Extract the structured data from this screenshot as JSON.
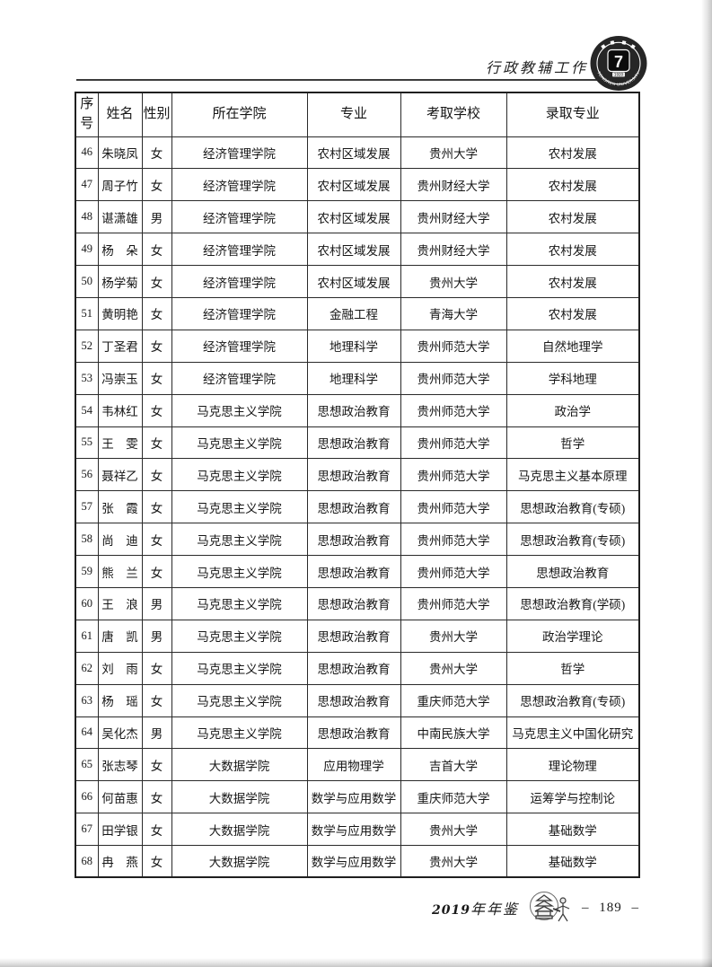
{
  "page_header": {
    "section_title": "行政教辅工作",
    "logo": {
      "glyph": "7",
      "year": "1920",
      "arc_text_bottom": "TONGREN UNIVERSITY"
    }
  },
  "table": {
    "columns": [
      "序号",
      "姓名",
      "性别",
      "所在学院",
      "专业",
      "考取学校",
      "录取专业"
    ],
    "rows": [
      [
        "46",
        "朱晓凤",
        "女",
        "经济管理学院",
        "农村区域发展",
        "贵州大学",
        "农村发展"
      ],
      [
        "47",
        "周子竹",
        "女",
        "经济管理学院",
        "农村区域发展",
        "贵州财经大学",
        "农村发展"
      ],
      [
        "48",
        "谌潇雄",
        "男",
        "经济管理学院",
        "农村区域发展",
        "贵州财经大学",
        "农村发展"
      ],
      [
        "49",
        "杨　朵",
        "女",
        "经济管理学院",
        "农村区域发展",
        "贵州财经大学",
        "农村发展"
      ],
      [
        "50",
        "杨学菊",
        "女",
        "经济管理学院",
        "农村区域发展",
        "贵州大学",
        "农村发展"
      ],
      [
        "51",
        "黄明艳",
        "女",
        "经济管理学院",
        "金融工程",
        "青海大学",
        "农村发展"
      ],
      [
        "52",
        "丁圣君",
        "女",
        "经济管理学院",
        "地理科学",
        "贵州师范大学",
        "自然地理学"
      ],
      [
        "53",
        "冯崇玉",
        "女",
        "经济管理学院",
        "地理科学",
        "贵州师范大学",
        "学科地理"
      ],
      [
        "54",
        "韦林红",
        "女",
        "马克思主义学院",
        "思想政治教育",
        "贵州师范大学",
        "政治学"
      ],
      [
        "55",
        "王　雯",
        "女",
        "马克思主义学院",
        "思想政治教育",
        "贵州师范大学",
        "哲学"
      ],
      [
        "56",
        "聂祥乙",
        "女",
        "马克思主义学院",
        "思想政治教育",
        "贵州师范大学",
        "马克思主义基本原理"
      ],
      [
        "57",
        "张　霞",
        "女",
        "马克思主义学院",
        "思想政治教育",
        "贵州师范大学",
        "思想政治教育(专硕)"
      ],
      [
        "58",
        "尚　迪",
        "女",
        "马克思主义学院",
        "思想政治教育",
        "贵州师范大学",
        "思想政治教育(专硕)"
      ],
      [
        "59",
        "熊　兰",
        "女",
        "马克思主义学院",
        "思想政治教育",
        "贵州师范大学",
        "思想政治教育"
      ],
      [
        "60",
        "王　浪",
        "男",
        "马克思主义学院",
        "思想政治教育",
        "贵州师范大学",
        "思想政治教育(学硕)"
      ],
      [
        "61",
        "唐　凯",
        "男",
        "马克思主义学院",
        "思想政治教育",
        "贵州大学",
        "政治学理论"
      ],
      [
        "62",
        "刘　雨",
        "女",
        "马克思主义学院",
        "思想政治教育",
        "贵州大学",
        "哲学"
      ],
      [
        "63",
        "杨　瑶",
        "女",
        "马克思主义学院",
        "思想政治教育",
        "重庆师范大学",
        "思想政治教育(专硕)"
      ],
      [
        "64",
        "吴化杰",
        "男",
        "马克思主义学院",
        "思想政治教育",
        "中南民族大学",
        "马克思主义中国化研究"
      ],
      [
        "65",
        "张志琴",
        "女",
        "大数据学院",
        "应用物理学",
        "吉首大学",
        "理论物理"
      ],
      [
        "66",
        "何苗惠",
        "女",
        "大数据学院",
        "数学与应用数学",
        "重庆师范大学",
        "运筹学与控制论"
      ],
      [
        "67",
        "田学银",
        "女",
        "大数据学院",
        "数学与应用数学",
        "贵州大学",
        "基础数学"
      ],
      [
        "68",
        "冉　燕",
        "女",
        "大数据学院",
        "数学与应用数学",
        "贵州大学",
        "基础数学"
      ]
    ]
  },
  "footer": {
    "year_digits": "2019",
    "yearbook_suffix": "年年鉴",
    "page_label": "– 189 –"
  }
}
